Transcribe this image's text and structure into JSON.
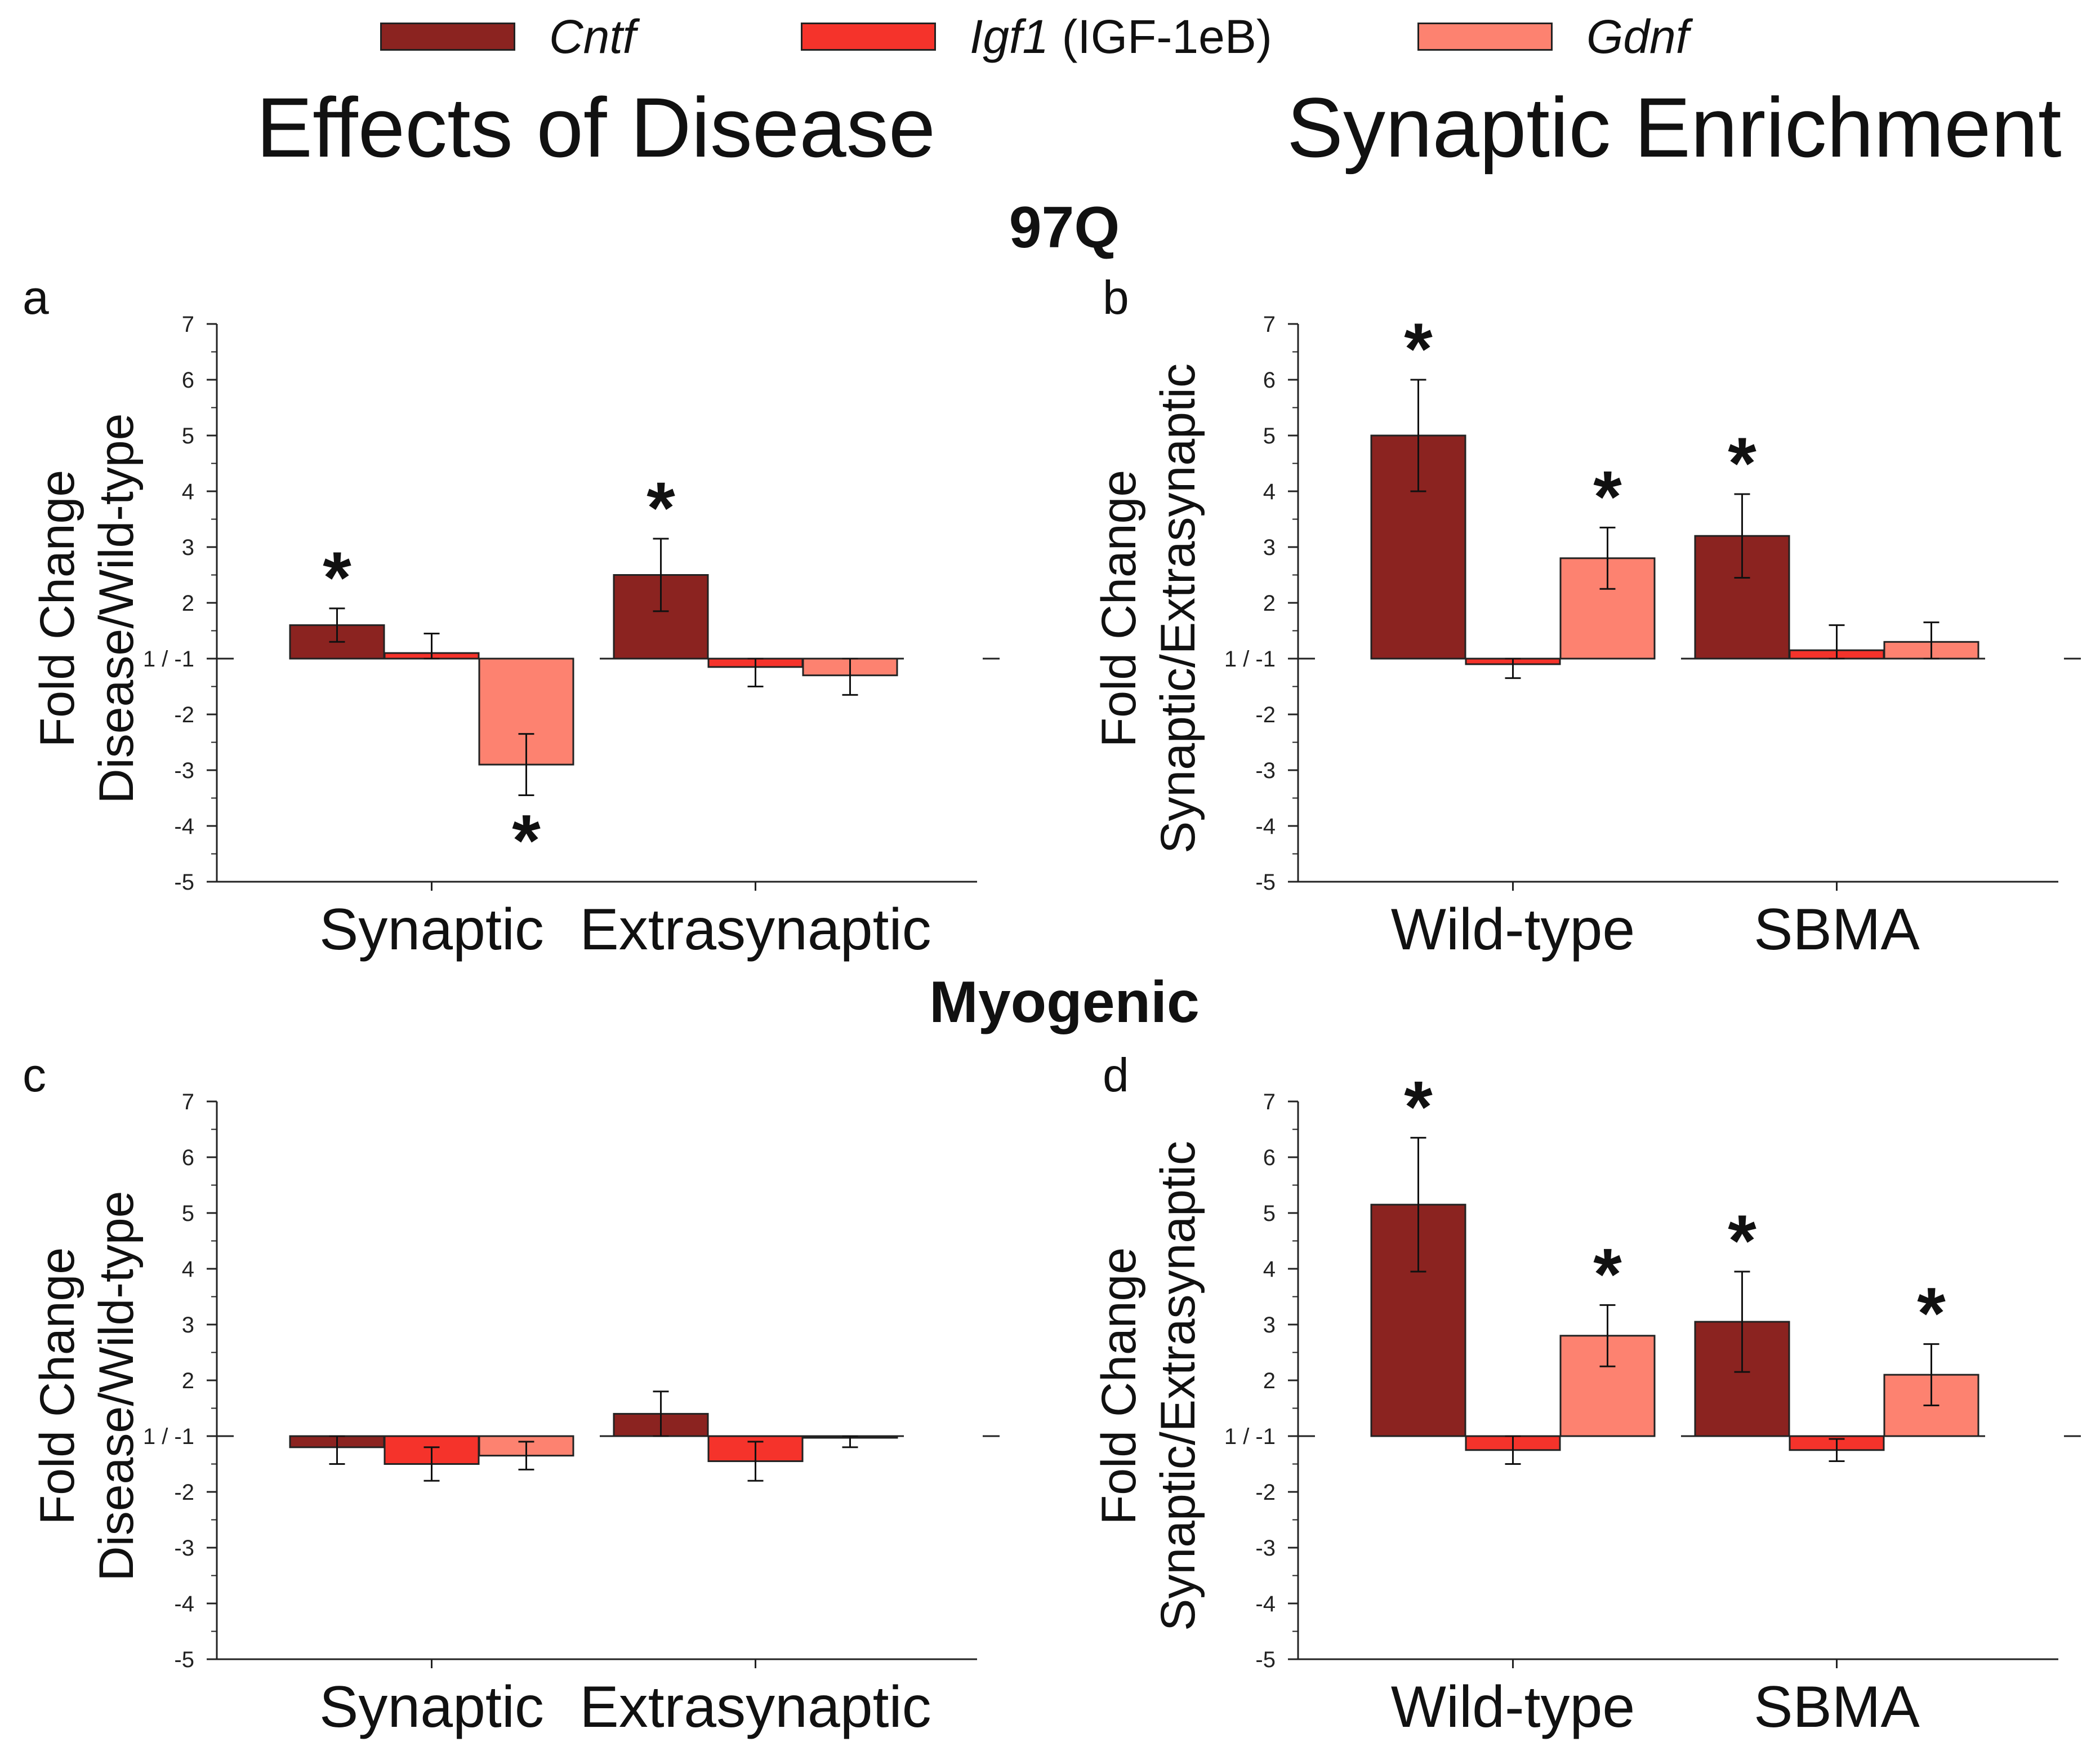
{
  "legend": [
    {
      "name": "Cntf",
      "italic_part": "Cntf",
      "plain_part": "",
      "color": "#8b2320"
    },
    {
      "name": "Igf1 (IGF-1eB)",
      "italic_part": "Igf1",
      "plain_part": " (IGF-1eB)",
      "color": "#f5332b"
    },
    {
      "name": "Gdnf",
      "italic_part": "Gdnf",
      "plain_part": "",
      "color": "#fd8270"
    }
  ],
  "column_titles": {
    "left": "Effects of Disease",
    "right": "Synaptic Enrichment"
  },
  "row_titles": {
    "top": "97Q",
    "bottom": "Myogenic"
  },
  "y_axis_titles": {
    "disease": {
      "line1": "Fold Change",
      "line2": "Disease/Wild-type"
    },
    "enrichment": {
      "line1": "Fold Change",
      "line2": "Synaptic/Extrasynaptic"
    }
  },
  "colors": {
    "bar_edge": "#222222",
    "axis": "#222222"
  },
  "chart_data": [
    {
      "panel": "a",
      "type": "bar",
      "categories": [
        "Synaptic",
        "Extrasynaptic"
      ],
      "ylim": [
        -5,
        7
      ],
      "tick_labels": [
        "-5",
        "-4",
        "-3",
        "-2",
        "1 / -1",
        "2",
        "3",
        "4",
        "5",
        "6",
        "7"
      ],
      "series": [
        {
          "name": "Cntf",
          "values": [
            1.6,
            2.5
          ],
          "errors": [
            0.3,
            0.65
          ],
          "significant": [
            true,
            true
          ]
        },
        {
          "name": "Igf1 (IGF-1eB)",
          "values": [
            1.1,
            -1.15
          ],
          "errors": [
            0.35,
            0.35
          ],
          "significant": [
            false,
            false
          ]
        },
        {
          "name": "Gdnf",
          "values": [
            -2.9,
            -1.3
          ],
          "errors": [
            0.55,
            0.35
          ],
          "significant": [
            true,
            false
          ]
        }
      ]
    },
    {
      "panel": "b",
      "type": "bar",
      "categories": [
        "Wild-type",
        "SBMA"
      ],
      "ylim": [
        -5,
        7
      ],
      "tick_labels": [
        "-5",
        "-4",
        "-3",
        "-2",
        "1 / -1",
        "2",
        "3",
        "4",
        "5",
        "6",
        "7"
      ],
      "series": [
        {
          "name": "Cntf",
          "values": [
            5.0,
            3.2
          ],
          "errors": [
            1.0,
            0.75
          ],
          "significant": [
            true,
            true
          ]
        },
        {
          "name": "Igf1 (IGF-1eB)",
          "values": [
            -1.1,
            1.15
          ],
          "errors": [
            0.25,
            0.45
          ],
          "significant": [
            false,
            false
          ]
        },
        {
          "name": "Gdnf",
          "values": [
            2.8,
            1.3
          ],
          "errors": [
            0.55,
            0.35
          ],
          "significant": [
            true,
            false
          ]
        }
      ]
    },
    {
      "panel": "c",
      "type": "bar",
      "categories": [
        "Synaptic",
        "Extrasynaptic"
      ],
      "ylim": [
        -5,
        7
      ],
      "tick_labels": [
        "-5",
        "-4",
        "-3",
        "-2",
        "1 / -1",
        "2",
        "3",
        "4",
        "5",
        "6",
        "7"
      ],
      "series": [
        {
          "name": "Cntf",
          "values": [
            -1.2,
            1.4
          ],
          "errors": [
            0.3,
            0.4
          ],
          "significant": [
            false,
            false
          ]
        },
        {
          "name": "Igf1 (IGF-1eB)",
          "values": [
            -1.5,
            -1.45
          ],
          "errors": [
            0.3,
            0.35
          ],
          "significant": [
            false,
            false
          ]
        },
        {
          "name": "Gdnf",
          "values": [
            -1.35,
            -1.0
          ],
          "errors": [
            0.25,
            0.2
          ],
          "significant": [
            false,
            false
          ]
        }
      ]
    },
    {
      "panel": "d",
      "type": "bar",
      "categories": [
        "Wild-type",
        "SBMA"
      ],
      "ylim": [
        -5,
        7
      ],
      "tick_labels": [
        "-5",
        "-4",
        "-3",
        "-2",
        "1 / -1",
        "2",
        "3",
        "4",
        "5",
        "6",
        "7"
      ],
      "series": [
        {
          "name": "Cntf",
          "values": [
            5.15,
            3.05
          ],
          "errors": [
            1.2,
            0.9
          ],
          "significant": [
            true,
            true
          ]
        },
        {
          "name": "Igf1 (IGF-1eB)",
          "values": [
            -1.25,
            -1.25
          ],
          "errors": [
            0.25,
            0.2
          ],
          "significant": [
            false,
            false
          ]
        },
        {
          "name": "Gdnf",
          "values": [
            2.8,
            2.1
          ],
          "errors": [
            0.55,
            0.55
          ],
          "significant": [
            true,
            true
          ]
        }
      ]
    }
  ]
}
